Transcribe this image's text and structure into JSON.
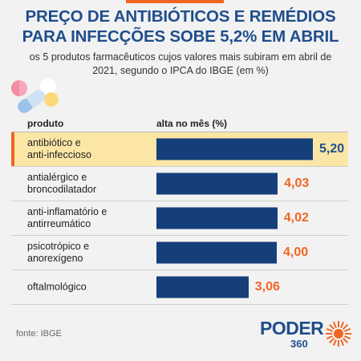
{
  "title": {
    "line1": "PREÇO DE ANTIBIÓTICOS E REMÉDIOS",
    "line2": "PARA INFECÇÕES SOBE 5,2% EM ABRIL"
  },
  "subtitle": {
    "line1": "os 5 produtos farmacêuticos cujos valores mais subiram em abril de",
    "line2": "2021, segundo o IPCA do IBGE (em %)"
  },
  "table": {
    "col_product": "produto",
    "col_value": "alta no mês (%)"
  },
  "source": "fonte: IBGE",
  "logo": {
    "text": "PODER",
    "number": "360"
  },
  "colors": {
    "title": "#1f4e8c",
    "bar": "#153f7a",
    "value": "#f26522",
    "highlight": "#fbe6a6"
  },
  "chart_data": {
    "type": "bar",
    "orientation": "horizontal",
    "categories": [
      [
        "antibiótico e",
        "anti-infeccioso"
      ],
      [
        "antialérgico e",
        "broncodilatador"
      ],
      [
        "anti-inflamatório e",
        "antirreumático"
      ],
      [
        "psicotrópico e",
        "anorexígeno"
      ],
      [
        "oftalmológico"
      ]
    ],
    "values": [
      5.2,
      4.03,
      4.02,
      4.0,
      3.06
    ],
    "value_labels": [
      "5,20",
      "4,03",
      "4,02",
      "4,00",
      "3,06"
    ],
    "highlight_index": 0,
    "xlim": [
      0,
      5.2
    ]
  }
}
